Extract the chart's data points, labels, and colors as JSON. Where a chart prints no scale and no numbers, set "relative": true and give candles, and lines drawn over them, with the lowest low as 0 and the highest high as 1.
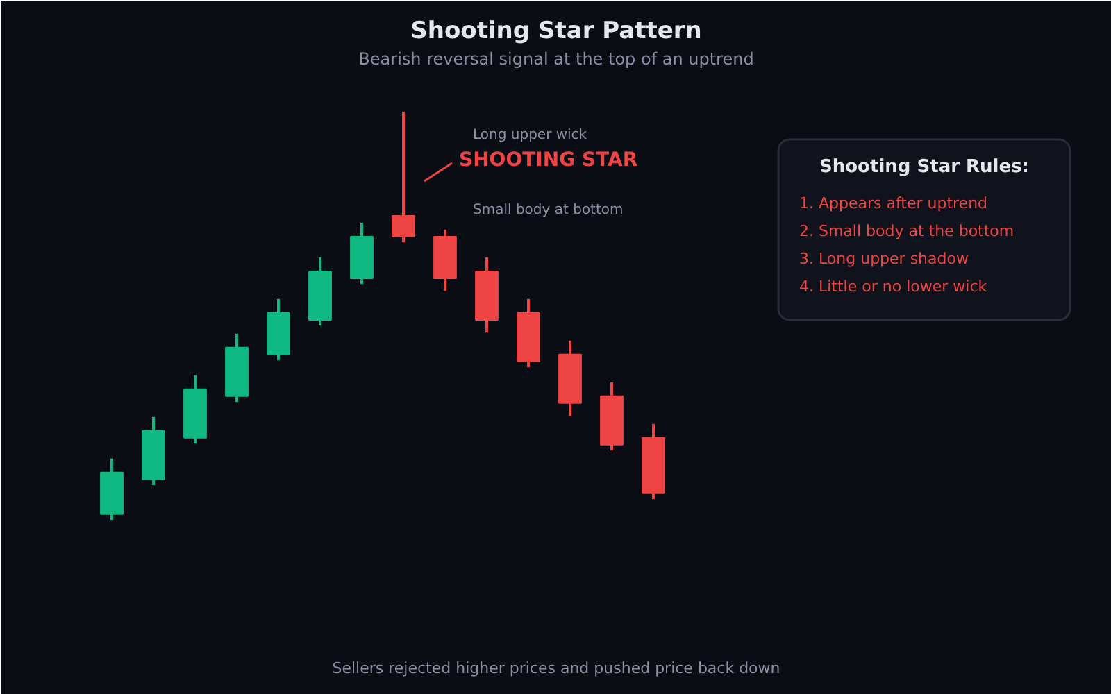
{
  "chart_data": [
    {
      "type": "candlestick",
      "title": "Shooting Star Pattern",
      "subtitle": "Bearish reversal signal at the top of an uptrend",
      "categories": [
        null,
        null,
        null,
        null,
        null,
        null,
        null,
        null,
        null,
        null,
        null,
        null,
        null,
        null
      ],
      "relative": true,
      "ohlc": [
        [
          0.014,
          0.15,
          0,
          0.116
        ],
        [
          0.099,
          0.252,
          0.085,
          0.218
        ],
        [
          0.201,
          0.354,
          0.187,
          0.32
        ],
        [
          0.303,
          0.456,
          0.289,
          0.422
        ],
        [
          0.405,
          0.541,
          0.391,
          0.507
        ],
        [
          0.49,
          0.643,
          0.476,
          0.609
        ],
        [
          0.592,
          0.728,
          0.578,
          0.694
        ],
        [
          0.745,
          1,
          0.68,
          0.694
        ],
        [
          0.694,
          0.711,
          0.561,
          0.592
        ],
        [
          0.609,
          0.643,
          0.459,
          0.49
        ],
        [
          0.507,
          0.541,
          0.374,
          0.388
        ],
        [
          0.405,
          0.439,
          0.255,
          0.286
        ],
        [
          0.303,
          0.337,
          0.17,
          0.184
        ],
        [
          0.201,
          0.235,
          0.051,
          0.065
        ]
      ],
      "colors": [
        "#10b981",
        "#10b981",
        "#10b981",
        "#10b981",
        "#10b981",
        "#10b981",
        "#10b981",
        "#ef4444",
        "#ef4444",
        "#ef4444",
        "#ef4444",
        "#ef4444",
        "#ef4444",
        "#ef4444"
      ],
      "annotations": [
        "Long upper wick",
        "SHOOTING STAR",
        "Small body at bottom",
        "Sellers rejected higher prices and pushed price back down"
      ]
    },
    {
      "type": "other",
      "title": "Shooting Star Rules:",
      "annotations": [
        "1. Appears after uptrend",
        "2. Small body at the bottom",
        "3. Long upper shadow",
        "4. Little or no lower wick"
      ]
    }
  ]
}
